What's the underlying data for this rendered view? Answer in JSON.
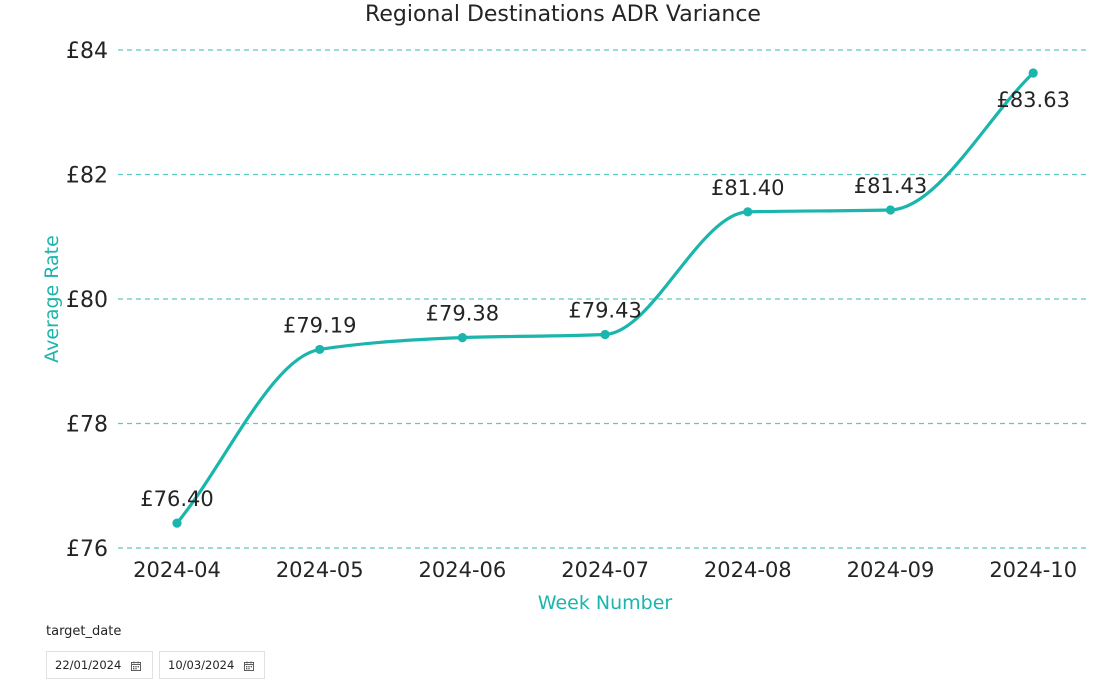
{
  "accent_color": "#1ab5ac",
  "grid_color": "#5fc8c1",
  "chart_data": {
    "type": "line",
    "title": "Regional Destinations ADR Variance",
    "xlabel": "Week Number",
    "ylabel": "Average Rate",
    "categories": [
      "2024-04",
      "2024-05",
      "2024-06",
      "2024-07",
      "2024-08",
      "2024-09",
      "2024-10"
    ],
    "series": [
      {
        "values": [
          76.4,
          79.19,
          79.38,
          79.43,
          81.4,
          81.43,
          83.63
        ],
        "labels": [
          "£76.40",
          "£79.19",
          "£79.38",
          "£79.43",
          "£81.40",
          "£81.43",
          "£83.63"
        ]
      }
    ],
    "ylim": [
      76,
      84
    ],
    "yticks": [
      76,
      78,
      80,
      82,
      84
    ],
    "ytick_labels": [
      "£76",
      "£78",
      "£80",
      "£82",
      "£84"
    ],
    "grid": true,
    "grid_style": "dashed"
  },
  "slicer": {
    "title": "target_date",
    "start_date": "22/01/2024",
    "end_date": "10/03/2024",
    "icon": "calendar-icon"
  }
}
